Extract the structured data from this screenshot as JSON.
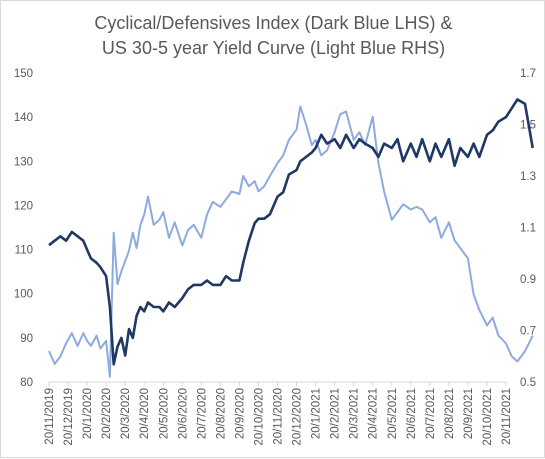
{
  "chart_data": {
    "type": "line",
    "title": "Cyclical/Defensives Index (Dark Blue LHS) &",
    "subtitle": "US 30-5 year Yield Curve (Light Blue RHS)",
    "grid": false,
    "legend": "none",
    "x_axis": {
      "tick_labels": [
        "20/11/2019",
        "20/12/2019",
        "20/1/2020",
        "20/2/2020",
        "20/3/2020",
        "20/4/2020",
        "20/5/2020",
        "20/6/2020",
        "20/7/2020",
        "20/8/2020",
        "20/9/2020",
        "20/10/2020",
        "20/11/2020",
        "20/12/2020",
        "20/1/2021",
        "20/2/2021",
        "20/3/2021",
        "20/4/2021",
        "20/5/2021",
        "20/6/2021",
        "20/7/2021",
        "20/8/2021",
        "20/9/2021",
        "20/10/2021",
        "20/11/2021"
      ]
    },
    "y_left": {
      "ylim": [
        80,
        150
      ],
      "ticks": [
        80,
        90,
        100,
        110,
        120,
        130,
        140,
        150
      ]
    },
    "y_right": {
      "ylim": [
        0.5,
        1.7
      ],
      "ticks": [
        0.5,
        0.7,
        0.9,
        1.1,
        1.3,
        1.5,
        1.7
      ]
    },
    "series": [
      {
        "color": "#1f3864",
        "axis": "left",
        "x": [
          0,
          0.3,
          0.6,
          0.9,
          1.2,
          1.5,
          1.8,
          2.0,
          2.2,
          2.5,
          2.7,
          3.0,
          3.2,
          3.4,
          3.6,
          3.8,
          4.0,
          4.2,
          4.4,
          4.6,
          4.8,
          5.0,
          5.2,
          5.5,
          5.8,
          6.0,
          6.3,
          6.6,
          7.0,
          7.3,
          7.6,
          8.0,
          8.3,
          8.6,
          9.0,
          9.3,
          9.6,
          10.0,
          10.2,
          10.5,
          10.8,
          11.0,
          11.3,
          11.6,
          12.0,
          12.3,
          12.6,
          13.0,
          13.2,
          13.5,
          13.8,
          14.0,
          14.3,
          14.6,
          15.0,
          15.3,
          15.6,
          16.0,
          16.3,
          16.6,
          17.0,
          17.3,
          17.6,
          18.0,
          18.3,
          18.6,
          19.0,
          19.3,
          19.6,
          20.0,
          20.3,
          20.6,
          21.0,
          21.3,
          21.6,
          22.0,
          22.3,
          22.6,
          23.0,
          23.3,
          23.6,
          24.0,
          24.3,
          24.6,
          25.0,
          25.2,
          25.4
        ],
        "values": [
          111,
          112,
          113,
          112,
          114,
          113,
          112,
          110,
          108,
          107,
          106,
          104,
          97,
          84,
          88,
          90,
          86,
          92,
          90,
          95,
          97,
          96,
          98,
          97,
          97,
          96,
          98,
          97,
          99,
          101,
          102,
          102,
          103,
          102,
          102,
          104,
          103,
          103,
          107,
          112,
          116,
          117,
          117,
          118,
          122,
          123,
          127,
          128,
          130,
          131,
          132,
          133,
          136,
          134,
          135,
          133,
          136,
          133,
          135,
          134,
          133,
          131,
          134,
          133,
          135,
          130,
          134,
          131,
          135,
          130,
          134,
          131,
          135,
          129,
          133,
          131,
          134,
          131,
          136,
          137,
          139,
          140,
          142,
          144,
          143,
          138,
          133
        ],
        "name": ""
      },
      {
        "color": "#8faadc",
        "axis": "right",
        "x": [
          0,
          0.3,
          0.6,
          0.9,
          1.2,
          1.5,
          1.8,
          2.0,
          2.2,
          2.5,
          2.7,
          3.0,
          3.2,
          3.4,
          3.6,
          3.8,
          4.0,
          4.2,
          4.4,
          4.6,
          4.8,
          5.0,
          5.2,
          5.5,
          5.8,
          6.0,
          6.3,
          6.6,
          7.0,
          7.3,
          7.6,
          8.0,
          8.3,
          8.6,
          9.0,
          9.3,
          9.6,
          10.0,
          10.2,
          10.5,
          10.8,
          11.0,
          11.3,
          11.6,
          12.0,
          12.3,
          12.6,
          13.0,
          13.2,
          13.5,
          13.8,
          14.0,
          14.3,
          14.6,
          15.0,
          15.3,
          15.6,
          16.0,
          16.3,
          16.6,
          17.0,
          17.3,
          17.6,
          18.0,
          18.3,
          18.6,
          19.0,
          19.3,
          19.6,
          20.0,
          20.3,
          20.6,
          21.0,
          21.3,
          21.6,
          22.0,
          22.3,
          22.6,
          23.0,
          23.3,
          23.6,
          24.0,
          24.3,
          24.6,
          25.0,
          25.2,
          25.4
        ],
        "values": [
          0.62,
          0.57,
          0.6,
          0.65,
          0.69,
          0.64,
          0.69,
          0.66,
          0.64,
          0.68,
          0.63,
          0.66,
          0.52,
          1.08,
          0.88,
          0.93,
          0.97,
          1.01,
          1.08,
          1.02,
          1.11,
          1.15,
          1.22,
          1.11,
          1.13,
          1.16,
          1.06,
          1.12,
          1.03,
          1.09,
          1.11,
          1.06,
          1.15,
          1.2,
          1.18,
          1.21,
          1.24,
          1.23,
          1.3,
          1.26,
          1.28,
          1.24,
          1.26,
          1.3,
          1.35,
          1.38,
          1.44,
          1.48,
          1.57,
          1.5,
          1.42,
          1.44,
          1.38,
          1.4,
          1.47,
          1.54,
          1.55,
          1.44,
          1.47,
          1.42,
          1.53,
          1.35,
          1.24,
          1.13,
          1.16,
          1.19,
          1.17,
          1.18,
          1.17,
          1.12,
          1.14,
          1.06,
          1.12,
          1.05,
          1.02,
          0.98,
          0.84,
          0.78,
          0.72,
          0.75,
          0.68,
          0.65,
          0.6,
          0.58,
          0.62,
          0.65,
          0.68
        ],
        "name": ""
      }
    ]
  }
}
